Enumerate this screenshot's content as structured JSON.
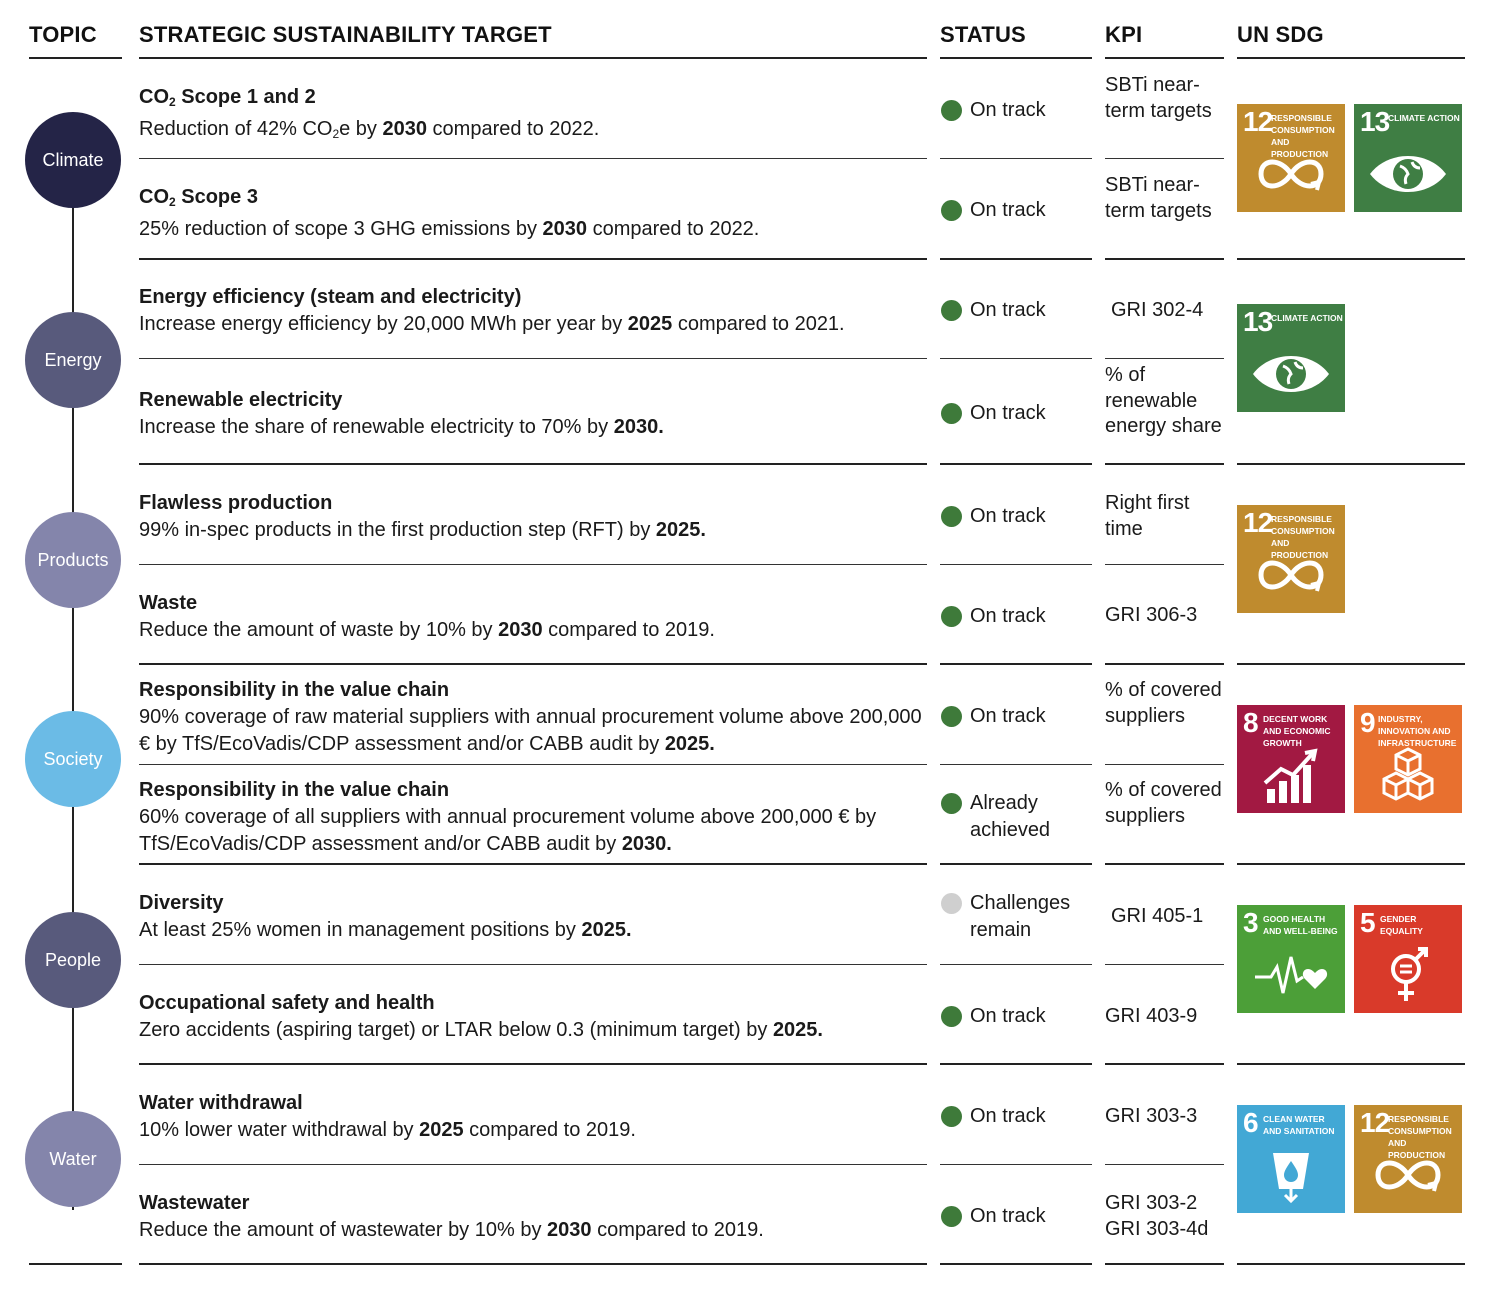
{
  "headers": {
    "topic": "TOPIC",
    "target": "STRATEGIC SUSTAINABILITY TARGET",
    "status": "STATUS",
    "kpi": "KPI",
    "sdg": "UN SDG"
  },
  "topics": {
    "climate": {
      "label": "Climate",
      "color": "#242447"
    },
    "energy": {
      "label": "Energy",
      "color": "#585a7c"
    },
    "products": {
      "label": "Products",
      "color": "#8485ab"
    },
    "society": {
      "label": "Society",
      "color": "#6bbbe6"
    },
    "people": {
      "label": "People",
      "color": "#585a7c"
    },
    "water": {
      "label": "Water",
      "color": "#8485ab"
    }
  },
  "rows": {
    "r1": {
      "title_pre": "CO",
      "title_sub": "2",
      "title_post": " Scope 1 and 2",
      "desc_pre": "Reduction of 42% CO",
      "desc_sub": "2",
      "desc_mid": "e by ",
      "desc_bold": "2030",
      "desc_post": " compared to 2022.",
      "status": "On track",
      "kpi": "SBTi near-term targets"
    },
    "r2": {
      "title_pre": "CO",
      "title_sub": "2",
      "title_post": " Scope 3",
      "desc_pre": "25% reduction of scope 3 GHG emissions by ",
      "desc_bold": "2030",
      "desc_post": " compared to 2022.",
      "status": "On track",
      "kpi": "SBTi near-term targets"
    },
    "r3": {
      "title": "Energy efficiency (steam and electricity)",
      "desc_pre": "Increase energy efficiency by 20,000 MWh per year by ",
      "desc_bold": "2025",
      "desc_post": " compared to 2021.",
      "status": "On track",
      "kpi": "GRI 302-4"
    },
    "r4": {
      "title": "Renewable electricity",
      "desc_pre": "Increase the share of renewable electricity to 70% by ",
      "desc_bold": "2030.",
      "desc_post": "",
      "status": "On track",
      "kpi": "% of renewable energy share"
    },
    "r5": {
      "title": "Flawless production",
      "desc_pre": "99% in-spec products in the first production step (RFT) by ",
      "desc_bold": "2025.",
      "desc_post": "",
      "status": "On track",
      "kpi": "Right first time"
    },
    "r6": {
      "title": "Waste",
      "desc_pre": "Reduce the amount of waste by 10% by ",
      "desc_bold": "2030",
      "desc_post": " compared to 2019.",
      "status": "On track",
      "kpi": "GRI 306-3"
    },
    "r7": {
      "title": "Responsibility in the value chain",
      "desc_pre": "90% coverage of raw material suppliers with annual procurement volume above 200,000 € by TfS/EcoVadis/CDP assessment and/or CABB audit by ",
      "desc_bold": "2025.",
      "desc_post": "",
      "status": "On track",
      "kpi": "% of covered suppliers"
    },
    "r8": {
      "title": "Responsibility in the value chain",
      "desc_pre": "60% coverage of all suppliers with annual procurement volume above 200,000 € by TfS/EcoVadis/CDP assessment and/or CABB audit by ",
      "desc_bold": "2030.",
      "desc_post": "",
      "status": "Already achieved",
      "kpi": "% of covered suppliers"
    },
    "r9": {
      "title": "Diversity",
      "desc_pre": "At least 25% women in management positions by ",
      "desc_bold": "2025.",
      "desc_post": "",
      "status": "Challenges remain",
      "kpi": "GRI 405-1"
    },
    "r10": {
      "title": "Occupational safety and health",
      "desc_pre": "Zero accidents (aspiring target) or LTAR below 0.3 (minimum target) by ",
      "desc_bold": "2025.",
      "desc_post": "",
      "status": "On track",
      "kpi": "GRI 403-9"
    },
    "r11": {
      "title": "Water withdrawal",
      "desc_pre": "10% lower water withdrawal by ",
      "desc_bold": "2025",
      "desc_post": " compared to 2019.",
      "status": "On track",
      "kpi": "GRI 303-3"
    },
    "r12": {
      "title": "Wastewater",
      "desc_pre": "Reduce the amount of wastewater by 10% by ",
      "desc_bold": "2030",
      "desc_post": " compared to 2019.",
      "status": "On track",
      "kpi": "GRI 303-2 GRI 303-4d"
    }
  },
  "status_colors": {
    "on_track": "#3e7a3a",
    "challenges": "#cfcfcf"
  },
  "sdg": {
    "g12": {
      "num": "12",
      "label": "RESPONSIBLE CONSUMPTION AND PRODUCTION",
      "color": "#bf8b2e",
      "icon": "infinity-icon"
    },
    "g13": {
      "num": "13",
      "label": "CLIMATE ACTION",
      "color": "#3f7e44",
      "icon": "eye-globe-icon"
    },
    "g8": {
      "num": "8",
      "label": "DECENT WORK AND ECONOMIC GROWTH",
      "color": "#a21942",
      "icon": "growth-chart-icon"
    },
    "g9": {
      "num": "9",
      "label": "INDUSTRY, INNOVATION AND INFRASTRUCTURE",
      "color": "#fd6925",
      "icon": "cubes-icon"
    },
    "g3": {
      "num": "3",
      "label": "GOOD HEALTH AND WELL-BEING",
      "color": "#4c9f38",
      "icon": "heartbeat-icon"
    },
    "g5": {
      "num": "5",
      "label": "GENDER EQUALITY",
      "color": "#ff3a21",
      "icon": "gender-equality-icon"
    },
    "g6": {
      "num": "6",
      "label": "CLEAN WATER AND SANITATION",
      "color": "#26bde2",
      "icon": "water-drop-icon"
    }
  }
}
